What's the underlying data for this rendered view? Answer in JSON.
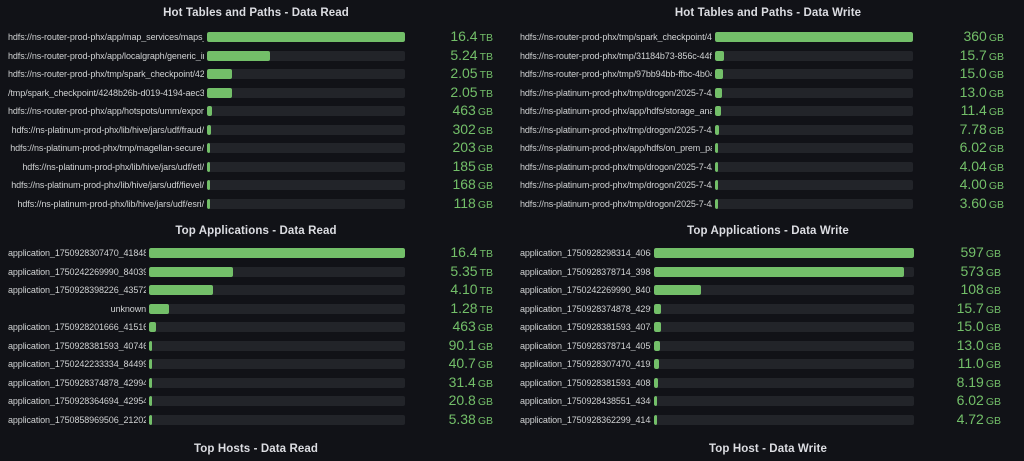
{
  "colors": {
    "background": "#111217",
    "bar_green": "#73BF69",
    "bar_track": "#222429",
    "label_text": "#d0d2d3",
    "title_text": "#dcdde2"
  },
  "chart_data": [
    {
      "type": "bar",
      "orientation": "horizontal",
      "title": "Hot Tables and Paths - Data Read",
      "unit": "bytes (SI display)",
      "max_gb": 16793.6,
      "categories": [
        "hdfs://ns-router-prod-phx/app/map_services/maps_l…",
        "hdfs://ns-router-prod-phx/app/localgraph/generic_in…",
        "hdfs://ns-router-prod-phx/tmp/spark_checkpoint/424…",
        "/tmp/spark_checkpoint/4248b26b-d019-4194-aec3-c…",
        "hdfs://ns-router-prod-phx/app/hotspots/umm/export…",
        "hdfs://ns-platinum-prod-phx/lib/hive/jars/udf/fraud/",
        "hdfs://ns-platinum-prod-phx/tmp/magellan-secure/",
        "hdfs://ns-platinum-prod-phx/lib/hive/jars/udf/etl/",
        "hdfs://ns-platinum-prod-phx/lib/hive/jars/udf/fievel/",
        "hdfs://ns-platinum-prod-phx/lib/hive/jars/udf/esri/"
      ],
      "values_gb": [
        16793.6,
        5365.76,
        2099.2,
        2099.2,
        463,
        302,
        203,
        185,
        168,
        118
      ],
      "display_values": [
        "16.4 TB",
        "5.24 TB",
        "2.05 TB",
        "2.05 TB",
        "463 GB",
        "302 GB",
        "203 GB",
        "185 GB",
        "168 GB",
        "118 GB"
      ]
    },
    {
      "type": "bar",
      "orientation": "horizontal",
      "title": "Hot Tables and Paths - Data Write",
      "unit": "bytes (SI display)",
      "max_gb": 360,
      "categories": [
        "hdfs://ns-router-prod-phx/tmp/spark_checkpoint/424…",
        "hdfs://ns-router-prod-phx/tmp/31184b73-856c-44f4-…",
        "hdfs://ns-router-prod-phx/tmp/97bb94bb-ffbc-4b04-9…",
        "hdfs://ns-platinum-prod-phx/tmp/drogon/2025-7-4/f…",
        "hdfs://ns-platinum-prod-phx/app/hdfs/storage_analy…",
        "hdfs://ns-platinum-prod-phx/tmp/drogon/2025-7-4/2…",
        "hdfs://ns-platinum-prod-phx/app/hdfs/on_prem_parti…",
        "hdfs://ns-platinum-prod-phx/tmp/drogon/2025-7-4/3…",
        "hdfs://ns-platinum-prod-phx/tmp/drogon/2025-7-4/a…",
        "hdfs://ns-platinum-prod-phx/tmp/drogon/2025-7-4/a…"
      ],
      "values_gb": [
        360,
        15.7,
        15.0,
        13.0,
        11.4,
        7.78,
        6.02,
        4.04,
        4.0,
        3.6
      ],
      "display_values": [
        "360 GB",
        "15.7 GB",
        "15.0 GB",
        "13.0 GB",
        "11.4 GB",
        "7.78 GB",
        "6.02 GB",
        "4.04 GB",
        "4.00 GB",
        "3.60 GB"
      ]
    },
    {
      "type": "bar",
      "orientation": "horizontal",
      "title": "Top Applications - Data Read",
      "unit": "bytes (SI display)",
      "max_gb": 16793.6,
      "categories": [
        "application_1750928307470_418486",
        "application_1750242269990_840390",
        "application_1750928398226_435725",
        "unknown",
        "application_1750928201666_415161",
        "application_1750928381593_407462",
        "application_1750242233334_844999",
        "application_1750928374878_429946",
        "application_1750928364694_429544",
        "application_1750858969506_2120243"
      ],
      "values_gb": [
        16793.6,
        5478.4,
        4198.4,
        1310.72,
        463,
        90.1,
        40.7,
        31.4,
        20.8,
        5.38
      ],
      "display_values": [
        "16.4 TB",
        "5.35 TB",
        "4.10 TB",
        "1.28 TB",
        "463 GB",
        "90.1 GB",
        "40.7 GB",
        "31.4 GB",
        "20.8 GB",
        "5.38 GB"
      ]
    },
    {
      "type": "bar",
      "orientation": "horizontal",
      "title": "Top Applications - Data Write",
      "unit": "bytes (SI display)",
      "max_gb": 597,
      "categories": [
        "application_1750928298314_406817",
        "application_1750928378714_398401",
        "application_1750242269990_840390",
        "application_1750928374878_429946",
        "application_1750928381593_407462",
        "application_1750928378714_405989",
        "application_1750928307470_419392",
        "application_1750928381593_408598",
        "application_1750928438551_434672",
        "application_1750928362299_414336"
      ],
      "values_gb": [
        597,
        573,
        108,
        15.7,
        15.0,
        13.0,
        11.0,
        8.19,
        6.02,
        4.72
      ],
      "display_values": [
        "597 GB",
        "573 GB",
        "108 GB",
        "15.7 GB",
        "15.0 GB",
        "13.0 GB",
        "11.0 GB",
        "8.19 GB",
        "6.02 GB",
        "4.72 GB"
      ]
    },
    {
      "type": "bar",
      "orientation": "horizontal",
      "title": "Top Hosts - Data Read",
      "categories": [],
      "values_gb": [],
      "display_values": []
    },
    {
      "type": "bar",
      "orientation": "horizontal",
      "title": "Top Host - Data Write",
      "categories": [],
      "values_gb": [],
      "display_values": []
    }
  ]
}
